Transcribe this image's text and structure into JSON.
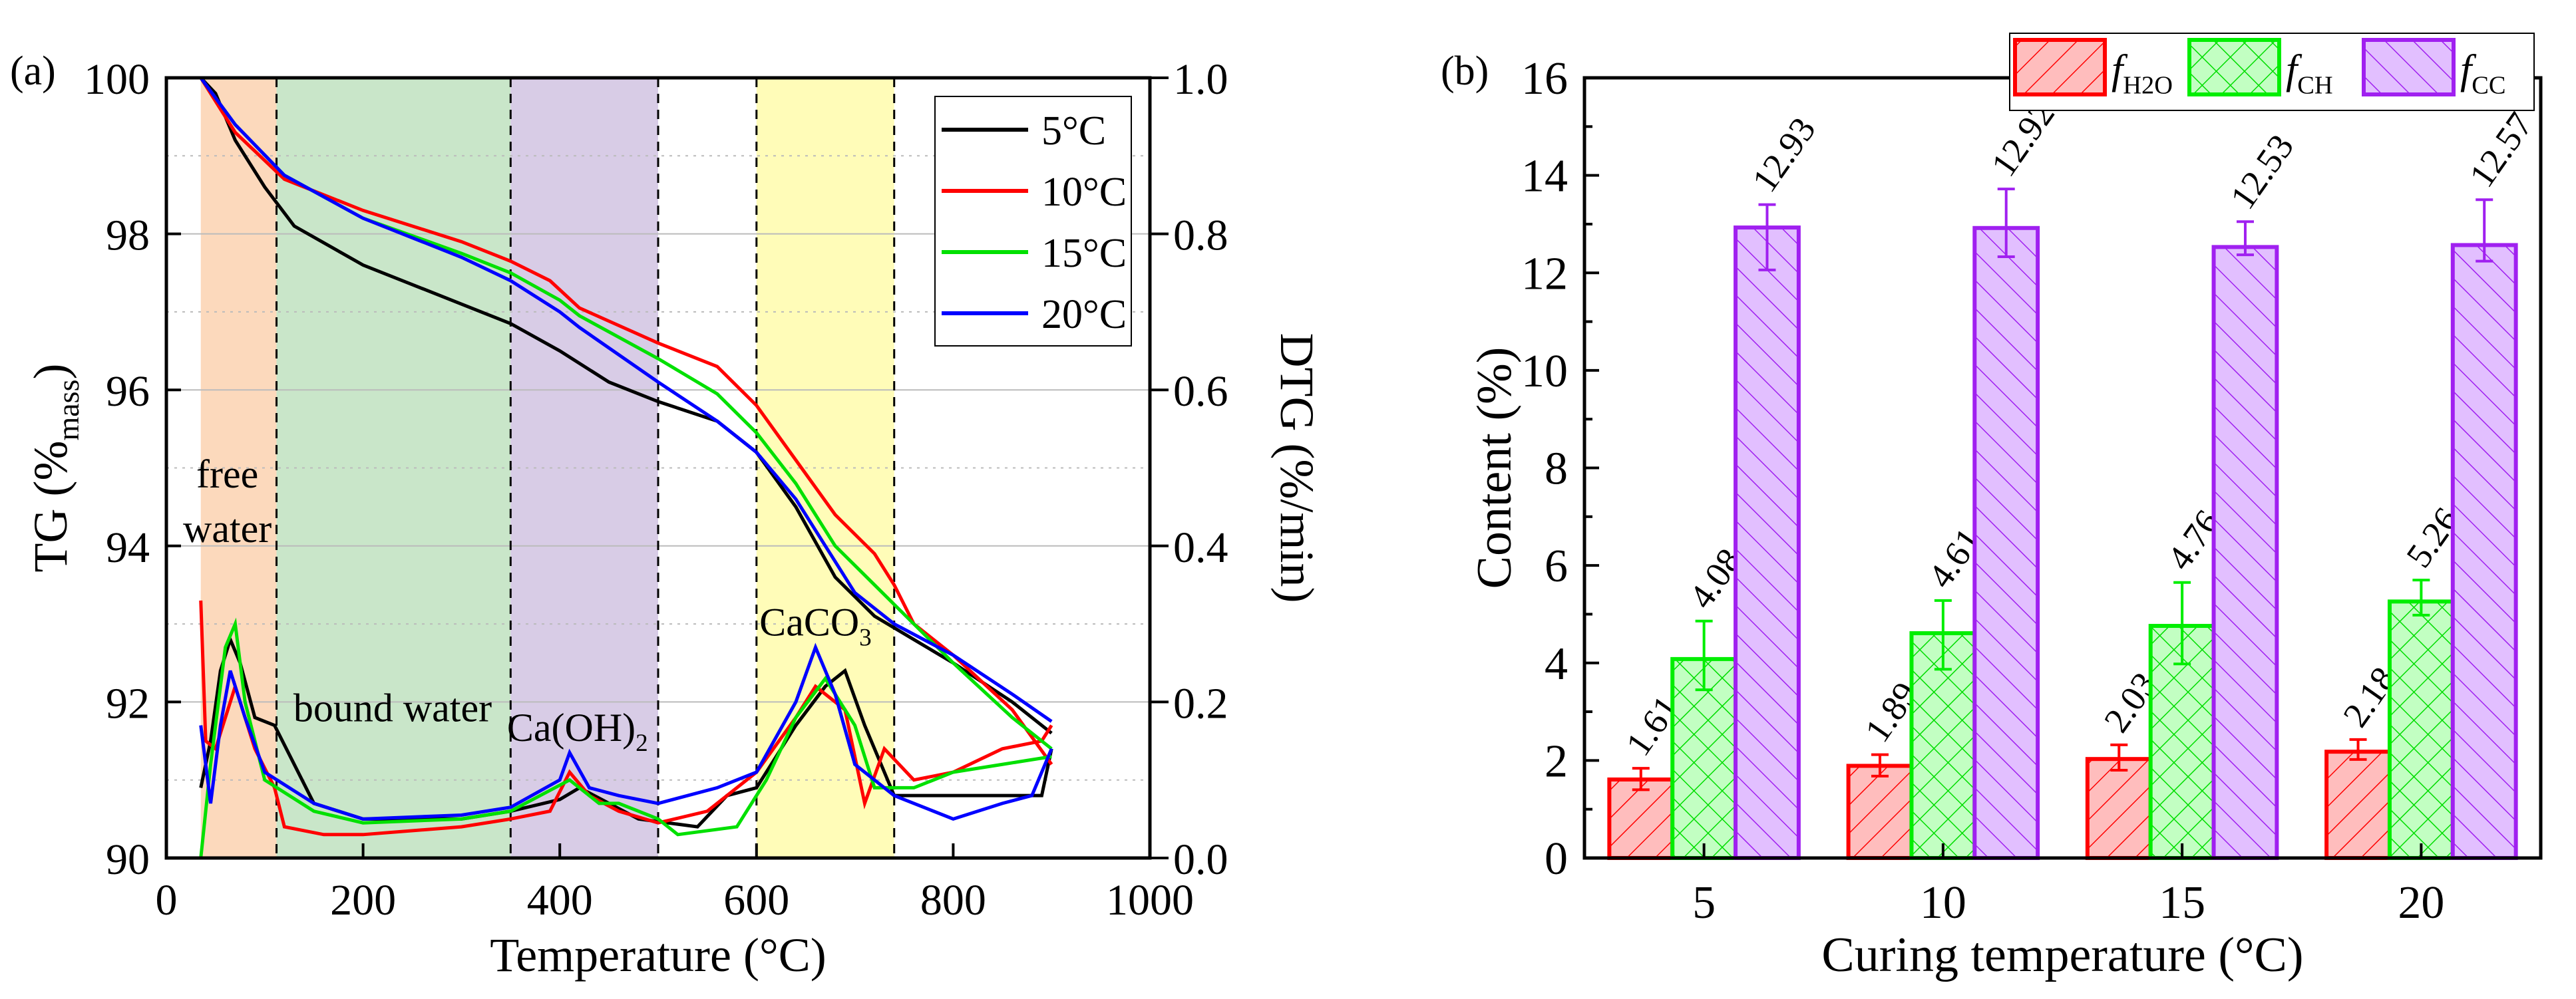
{
  "chart_data": [
    {
      "type": "line",
      "panel_label": "(a)",
      "xlabel": "Temperature (°C)",
      "ylabel_main": "TG (%",
      "ylabel_sub": "mass",
      "ylabel_end": ")",
      "y2label": "DTG (%/min)",
      "xlim": [
        0,
        1000
      ],
      "ylim": [
        90,
        100
      ],
      "y2lim": [
        0,
        1
      ],
      "xticks": [
        "0",
        "200",
        "400",
        "600",
        "800",
        "1000"
      ],
      "yticks": [
        "90",
        "92",
        "94",
        "96",
        "98",
        "100"
      ],
      "y2ticks": [
        "0.0",
        "0.2",
        "0.4",
        "0.6",
        "0.8",
        "1.0"
      ],
      "legend_position": "top-right",
      "regions": [
        {
          "from": 35,
          "to": 112,
          "color": "#FCD9BC"
        },
        {
          "from": 112,
          "to": 350,
          "color": "#C9E6C9"
        },
        {
          "from": 350,
          "to": 500,
          "color": "#D8CCE6"
        },
        {
          "from": 600,
          "to": 740,
          "color": "#FFFCB8"
        }
      ],
      "dashed_lines": [
        112,
        350,
        500,
        600,
        740
      ],
      "annotations": [
        {
          "text": "free",
          "x": 62,
          "y": 94.75
        },
        {
          "text": "water",
          "x": 62,
          "y": 94.05
        },
        {
          "text": "bound water",
          "x": 230,
          "y": 91.75
        },
        {
          "text": "Ca(OH)",
          "sub": "2",
          "x": 418,
          "y": 91.5
        },
        {
          "text": "CaCO",
          "sub": "3",
          "x": 660,
          "y": 92.85
        }
      ],
      "series": [
        {
          "name": "5°C",
          "color": "#000000",
          "tg": [
            [
              35,
              100
            ],
            [
              50,
              99.8
            ],
            [
              70,
              99.2
            ],
            [
              100,
              98.6
            ],
            [
              130,
              98.1
            ],
            [
              200,
              97.6
            ],
            [
              300,
              97.1
            ],
            [
              350,
              96.85
            ],
            [
              400,
              96.5
            ],
            [
              450,
              96.1
            ],
            [
              500,
              95.85
            ],
            [
              560,
              95.6
            ],
            [
              600,
              95.2
            ],
            [
              640,
              94.5
            ],
            [
              680,
              93.6
            ],
            [
              720,
              93.1
            ],
            [
              760,
              92.8
            ],
            [
              800,
              92.5
            ],
            [
              860,
              92
            ],
            [
              900,
              91.6
            ]
          ],
          "dtg": [
            [
              35,
              0.09
            ],
            [
              45,
              0.15
            ],
            [
              55,
              0.24
            ],
            [
              65,
              0.28
            ],
            [
              75,
              0.25
            ],
            [
              90,
              0.18
            ],
            [
              110,
              0.17
            ],
            [
              130,
              0.12
            ],
            [
              150,
              0.07
            ],
            [
              200,
              0.05
            ],
            [
              300,
              0.05
            ],
            [
              350,
              0.06
            ],
            [
              400,
              0.075
            ],
            [
              420,
              0.09
            ],
            [
              450,
              0.07
            ],
            [
              480,
              0.05
            ],
            [
              540,
              0.04
            ],
            [
              570,
              0.08
            ],
            [
              600,
              0.09
            ],
            [
              640,
              0.17
            ],
            [
              670,
              0.22
            ],
            [
              690,
              0.24
            ],
            [
              710,
              0.17
            ],
            [
              740,
              0.08
            ],
            [
              800,
              0.08
            ],
            [
              850,
              0.08
            ],
            [
              890,
              0.08
            ],
            [
              900,
              0.14
            ]
          ]
        },
        {
          "name": "10°C",
          "color": "#FF0000",
          "tg": [
            [
              35,
              100
            ],
            [
              70,
              99.3
            ],
            [
              120,
              98.7
            ],
            [
              200,
              98.3
            ],
            [
              300,
              97.9
            ],
            [
              350,
              97.65
            ],
            [
              390,
              97.4
            ],
            [
              420,
              97.05
            ],
            [
              500,
              96.6
            ],
            [
              560,
              96.3
            ],
            [
              600,
              95.8
            ],
            [
              640,
              95.1
            ],
            [
              680,
              94.4
            ],
            [
              720,
              93.9
            ],
            [
              740,
              93.5
            ],
            [
              760,
              93.0
            ],
            [
              800,
              92.6
            ],
            [
              860,
              91.9
            ],
            [
              900,
              91.2
            ]
          ],
          "dtg": [
            [
              35,
              0.33
            ],
            [
              40,
              0.15
            ],
            [
              50,
              0.14
            ],
            [
              70,
              0.22
            ],
            [
              90,
              0.14
            ],
            [
              110,
              0.09
            ],
            [
              120,
              0.04
            ],
            [
              160,
              0.03
            ],
            [
              200,
              0.03
            ],
            [
              300,
              0.04
            ],
            [
              350,
              0.05
            ],
            [
              390,
              0.06
            ],
            [
              410,
              0.11
            ],
            [
              430,
              0.08
            ],
            [
              460,
              0.06
            ],
            [
              500,
              0.045
            ],
            [
              550,
              0.06
            ],
            [
              600,
              0.11
            ],
            [
              640,
              0.18
            ],
            [
              660,
              0.22
            ],
            [
              690,
              0.19
            ],
            [
              710,
              0.07
            ],
            [
              730,
              0.14
            ],
            [
              760,
              0.1
            ],
            [
              800,
              0.11
            ],
            [
              850,
              0.14
            ],
            [
              890,
              0.15
            ],
            [
              900,
              0.17
            ]
          ]
        },
        {
          "name": "15°C",
          "color": "#00E000",
          "tg": [
            [
              35,
              100
            ],
            [
              70,
              99.4
            ],
            [
              120,
              98.75
            ],
            [
              200,
              98.2
            ],
            [
              300,
              97.75
            ],
            [
              350,
              97.5
            ],
            [
              400,
              97.15
            ],
            [
              420,
              96.95
            ],
            [
              500,
              96.4
            ],
            [
              560,
              95.95
            ],
            [
              600,
              95.45
            ],
            [
              640,
              94.8
            ],
            [
              680,
              94.0
            ],
            [
              720,
              93.5
            ],
            [
              760,
              93.0
            ],
            [
              800,
              92.5
            ],
            [
              860,
              91.8
            ],
            [
              900,
              91.4
            ]
          ],
          "dtg": [
            [
              35,
              0.0
            ],
            [
              45,
              0.12
            ],
            [
              60,
              0.27
            ],
            [
              70,
              0.3
            ],
            [
              80,
              0.2
            ],
            [
              100,
              0.1
            ],
            [
              150,
              0.06
            ],
            [
              200,
              0.045
            ],
            [
              300,
              0.05
            ],
            [
              350,
              0.06
            ],
            [
              410,
              0.1
            ],
            [
              440,
              0.07
            ],
            [
              460,
              0.07
            ],
            [
              500,
              0.05
            ],
            [
              520,
              0.03
            ],
            [
              580,
              0.04
            ],
            [
              610,
              0.1
            ],
            [
              640,
              0.18
            ],
            [
              670,
              0.23
            ],
            [
              700,
              0.17
            ],
            [
              720,
              0.09
            ],
            [
              760,
              0.09
            ],
            [
              800,
              0.11
            ],
            [
              850,
              0.12
            ],
            [
              900,
              0.13
            ]
          ]
        },
        {
          "name": "20°C",
          "color": "#0000FF",
          "tg": [
            [
              35,
              100
            ],
            [
              70,
              99.4
            ],
            [
              120,
              98.75
            ],
            [
              200,
              98.2
            ],
            [
              300,
              97.7
            ],
            [
              350,
              97.4
            ],
            [
              400,
              97.0
            ],
            [
              420,
              96.8
            ],
            [
              500,
              96.1
            ],
            [
              560,
              95.6
            ],
            [
              600,
              95.2
            ],
            [
              640,
              94.6
            ],
            [
              670,
              94.0
            ],
            [
              700,
              93.4
            ],
            [
              740,
              93.0
            ],
            [
              800,
              92.6
            ],
            [
              860,
              92.1
            ],
            [
              900,
              91.75
            ]
          ],
          "dtg": [
            [
              35,
              0.17
            ],
            [
              45,
              0.07
            ],
            [
              55,
              0.17
            ],
            [
              65,
              0.24
            ],
            [
              80,
              0.18
            ],
            [
              100,
              0.11
            ],
            [
              150,
              0.07
            ],
            [
              200,
              0.05
            ],
            [
              300,
              0.055
            ],
            [
              350,
              0.065
            ],
            [
              400,
              0.1
            ],
            [
              410,
              0.135
            ],
            [
              430,
              0.09
            ],
            [
              460,
              0.08
            ],
            [
              500,
              0.07
            ],
            [
              560,
              0.09
            ],
            [
              600,
              0.11
            ],
            [
              640,
              0.2
            ],
            [
              660,
              0.27
            ],
            [
              680,
              0.21
            ],
            [
              700,
              0.12
            ],
            [
              740,
              0.08
            ],
            [
              780,
              0.06
            ],
            [
              800,
              0.05
            ],
            [
              850,
              0.07
            ],
            [
              880,
              0.08
            ],
            [
              900,
              0.14
            ]
          ]
        }
      ]
    },
    {
      "type": "bar",
      "panel_label": "(b)",
      "xlabel": "Curing temperature (°C)",
      "ylabel": "Content (%)",
      "ylim": [
        0,
        16
      ],
      "yticks": [
        "0",
        "2",
        "4",
        "6",
        "8",
        "10",
        "12",
        "14",
        "16"
      ],
      "categories": [
        "5",
        "10",
        "15",
        "20"
      ],
      "legend_position": "top-right",
      "series": [
        {
          "name": "f",
          "sub": "H2O",
          "stroke": "#FF0000",
          "fill": "#FFBDBD",
          "hatch": "forward",
          "values": [
            1.61,
            1.89,
            2.03,
            2.18
          ],
          "labels": [
            "1.61",
            "1.89",
            "2.03",
            "2.18"
          ],
          "err_low": [
            1.4,
            1.68,
            1.8,
            2.02
          ],
          "err_high": [
            1.84,
            2.12,
            2.32,
            2.43
          ]
        },
        {
          "name": "f",
          "sub": "CH",
          "stroke": "#00EE00",
          "fill": "#C2FFC2",
          "hatch": "cross",
          "values": [
            4.08,
            4.61,
            4.76,
            5.26
          ],
          "labels": [
            "4.08",
            "4.61",
            "4.76",
            "5.26"
          ],
          "err_low": [
            3.45,
            3.87,
            3.98,
            4.98
          ],
          "err_high": [
            4.86,
            5.28,
            5.65,
            5.7
          ]
        },
        {
          "name": "f",
          "sub": "CC",
          "stroke": "#A020F0",
          "fill": "#E2BFFF",
          "hatch": "backward",
          "values": [
            12.93,
            12.92,
            12.53,
            12.57
          ],
          "labels": [
            "12.93",
            "12.92",
            "12.53",
            "12.57"
          ],
          "err_low": [
            12.06,
            12.33,
            12.37,
            12.24
          ],
          "err_high": [
            13.4,
            13.72,
            13.05,
            13.5
          ]
        }
      ]
    }
  ]
}
